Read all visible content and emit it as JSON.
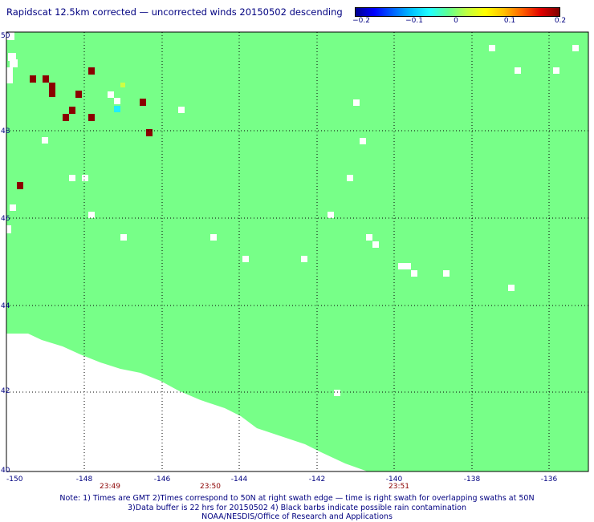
{
  "title": "Rapidscat 12.5km corrected — uncorrected winds 20150502 descending",
  "colorbar": {
    "colors": [
      "#000090",
      "#0000ff",
      "#0060ff",
      "#00c0ff",
      "#20ffff",
      "#60ff90",
      "#c0ff40",
      "#ffff00",
      "#ffc000",
      "#ff6000",
      "#e00000",
      "#800000"
    ],
    "ticks": [
      "−0.2",
      "−0.1",
      "0",
      "0.1",
      "0.2"
    ]
  },
  "map": {
    "lon_labels": [
      "-150",
      "-148",
      "-146",
      "-144",
      "-142",
      "-140",
      "-138",
      "-136"
    ],
    "lat_labels": [
      "50",
      "48",
      "46",
      "44",
      "42",
      "40"
    ],
    "time_labels": [
      "23:49",
      "23:50",
      "23:51"
    ],
    "swath_color": "#77ff88",
    "rain_color": "#8b0000"
  },
  "notes": [
    "Note: 1) Times are GMT 2)Times correspond to 50N at right swath edge — time is right swath for overlapping swaths at 50N",
    "3)Data buffer is 22 hrs for 20150502 4) Black barbs indicate possible rain contamination",
    "NOAA/NESDIS/Office of Research and Applications"
  ]
}
